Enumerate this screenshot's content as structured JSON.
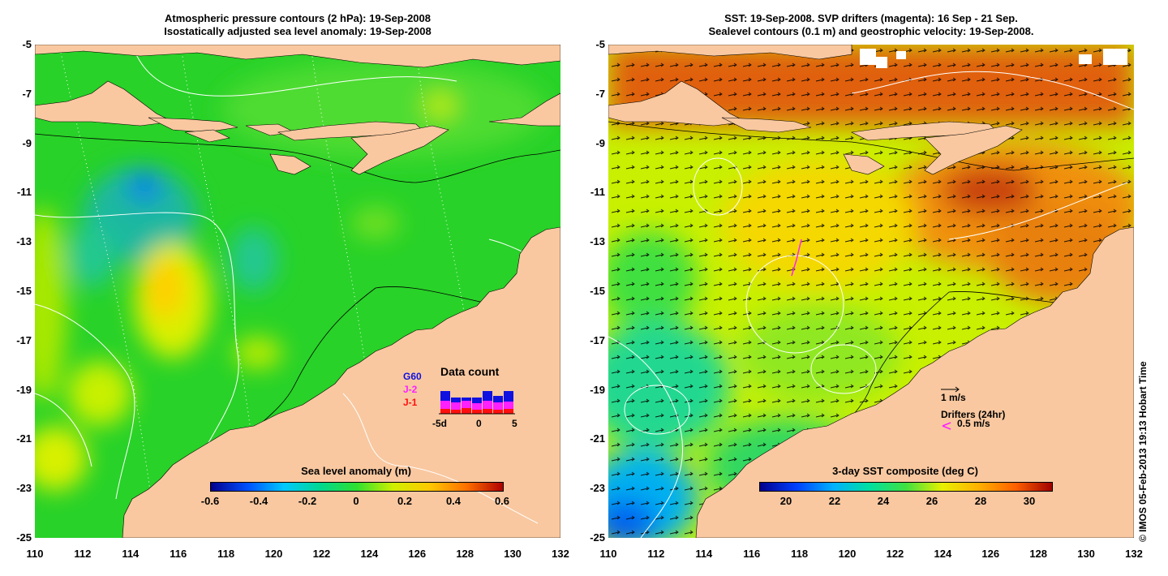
{
  "left_panel": {
    "title_line1": "Atmospheric pressure contours (2 hPa): 19-Sep-2008",
    "title_line2": "Isostatically adjusted sea level anomaly: 19-Sep-2008",
    "colorbar_title": "Sea level anomaly (m)",
    "colorbar_ticks": [
      "-0.6",
      "-0.4",
      "-0.2",
      "0",
      "0.2",
      "0.4",
      "0.6"
    ],
    "data_count": {
      "title": "Data count",
      "missions": [
        "G60",
        "J-2",
        "J-1"
      ],
      "mission_colors": [
        "#1010e0",
        "#ff20ff",
        "#ff1010"
      ],
      "axis_labels": [
        "-5d",
        "0",
        "5"
      ]
    }
  },
  "right_panel": {
    "title_line1": "SST: 19-Sep-2008. SVP drifters (magenta): 16 Sep - 21 Sep.",
    "title_line2": "Sealevel contours (0.1 m) and geostrophic velocity: 19-Sep-2008.",
    "colorbar_title": "3-day SST composite (deg C)",
    "colorbar_ticks": [
      "20",
      "22",
      "24",
      "26",
      "28",
      "30"
    ],
    "velocity_scale_label": "1 m/s",
    "drifters_label": "Drifters (24hr)",
    "drifter_speed_label": "0.5 m/s"
  },
  "axes": {
    "y_ticks": [
      "-5",
      "-7",
      "-9",
      "-11",
      "-13",
      "-15",
      "-17",
      "-19",
      "-21",
      "-23",
      "-25"
    ],
    "x_ticks": [
      "110",
      "112",
      "114",
      "116",
      "118",
      "120",
      "122",
      "124",
      "126",
      "128",
      "130",
      "132"
    ]
  },
  "credit": "© IMOS 05-Feb-2013 19:13 Hobart Time",
  "colors": {
    "land": "#f9c8a0",
    "sla_ramp": [
      "#00008c",
      "#0050ff",
      "#00c8ff",
      "#00d890",
      "#30e030",
      "#d0f000",
      "#ffc800",
      "#ff7000",
      "#b00000"
    ],
    "sst_ramp": [
      "#00008c",
      "#0040ff",
      "#00b0ff",
      "#00e0a0",
      "#40e040",
      "#e8f000",
      "#ffb000",
      "#ff6000",
      "#a00000"
    ]
  }
}
